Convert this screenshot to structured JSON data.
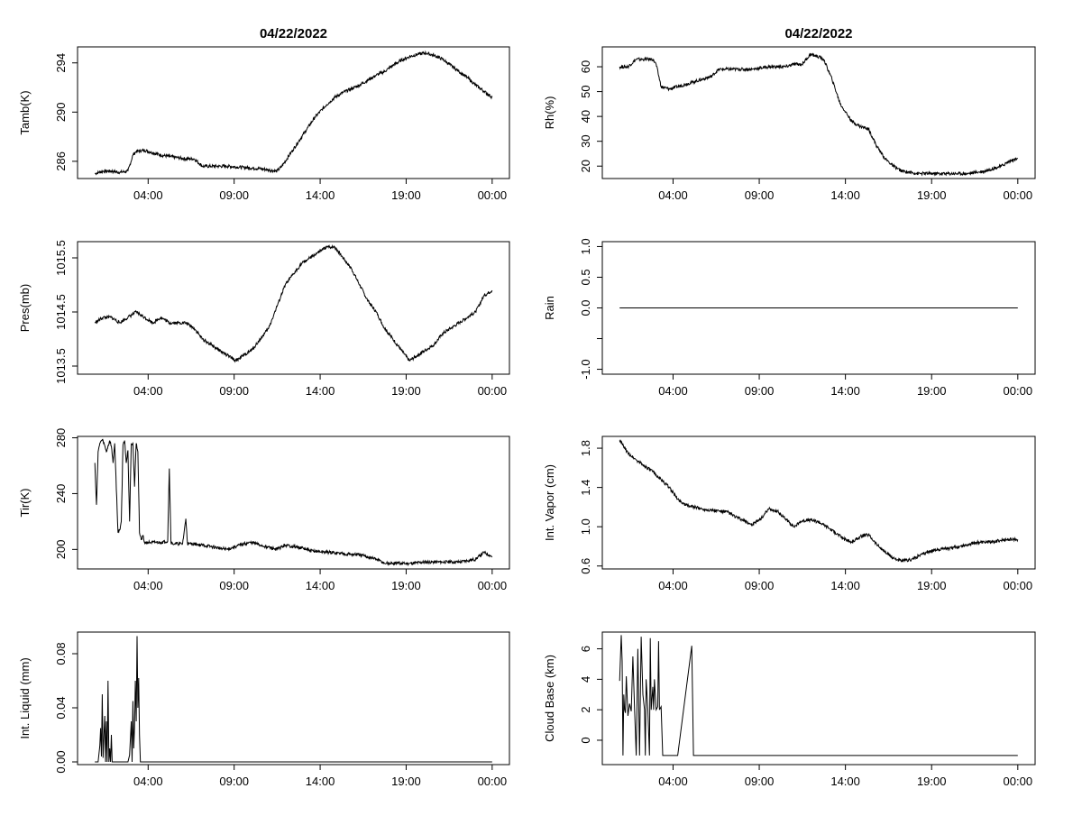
{
  "chart_data": [
    {
      "type": "line",
      "title": "04/22/2022",
      "ylabel": "Tamb(K)",
      "xlim": [
        0,
        24
      ],
      "ylim": [
        284.6,
        295.3
      ],
      "xticks": [
        "04:00",
        "09:00",
        "14:00",
        "19:00",
        "00:00"
      ],
      "yticks": [
        286,
        290,
        294
      ],
      "x": [
        0,
        0.5,
        1,
        1.5,
        2,
        2.3,
        2.5,
        3,
        3.5,
        4,
        4.5,
        5,
        5.5,
        6,
        6.5,
        7,
        8,
        9,
        10,
        10.5,
        11,
        11.3,
        11.8,
        12.3,
        12.8,
        13.3,
        14,
        14.5,
        15,
        16,
        17,
        17.5,
        18,
        18.5,
        19,
        19.5,
        20,
        20.5,
        21,
        21.5,
        22,
        22.5,
        23,
        23.5,
        24
      ],
      "y": [
        285,
        285.2,
        285.2,
        285.1,
        285.2,
        286.5,
        286.8,
        286.9,
        286.7,
        286.5,
        286.4,
        286.3,
        286.2,
        286.2,
        285.6,
        285.6,
        285.6,
        285.5,
        285.4,
        285.3,
        285.2,
        285.6,
        286.6,
        287.6,
        288.6,
        289.6,
        290.6,
        291.2,
        291.6,
        292.2,
        293,
        293.3,
        293.8,
        294.2,
        294.5,
        294.7,
        294.8,
        294.6,
        294.3,
        293.8,
        293.3,
        292.8,
        292.2,
        291.7,
        291.2
      ]
    },
    {
      "type": "line",
      "title": "04/22/2022",
      "ylabel": "Rh(%)",
      "xlim": [
        0,
        24
      ],
      "ylim": [
        15,
        68
      ],
      "xticks": [
        "04:00",
        "09:00",
        "14:00",
        "19:00",
        "00:00"
      ],
      "yticks": [
        20,
        30,
        40,
        50,
        60
      ],
      "x": [
        0,
        0.5,
        1,
        1.5,
        2,
        2.2,
        2.5,
        3,
        3.5,
        4,
        4.5,
        5,
        5.5,
        6,
        7,
        8,
        9,
        10,
        10.5,
        11,
        11.5,
        12,
        12.3,
        12.8,
        13.3,
        14,
        14.5,
        15,
        15.5,
        16,
        16.5,
        17,
        18,
        19,
        20,
        21,
        22,
        23,
        23.5,
        24
      ],
      "y": [
        60,
        60,
        63,
        63,
        63,
        61,
        52,
        51,
        52,
        53,
        54,
        55,
        56,
        59,
        59,
        59,
        60,
        60,
        61,
        61,
        65,
        64,
        63,
        55,
        45,
        38,
        36,
        35,
        28,
        23,
        20,
        18,
        17,
        17,
        17,
        17,
        18,
        20,
        22,
        23
      ]
    },
    {
      "type": "line",
      "ylabel": "Pres(mb)",
      "xlim": [
        0,
        24
      ],
      "ylim": [
        1013.35,
        1015.8
      ],
      "xticks": [
        "04:00",
        "09:00",
        "14:00",
        "19:00",
        "00:00"
      ],
      "yticks": [
        1013.5,
        1014.5,
        1015.5
      ],
      "ytick_labels": [
        "1013.5",
        "1014.5",
        "1015.5"
      ],
      "x": [
        0,
        0.5,
        1,
        1.5,
        2,
        2.5,
        3,
        3.5,
        4,
        4.5,
        5,
        5.5,
        6,
        6.5,
        7,
        7.5,
        8,
        8.5,
        9,
        9.5,
        10,
        10.5,
        11,
        11.5,
        12,
        12.5,
        13,
        13.5,
        14,
        14.5,
        15,
        15.5,
        16,
        16.5,
        17,
        17.5,
        18,
        18.5,
        19,
        19.5,
        20,
        20.5,
        21,
        21.5,
        22,
        22.5,
        23,
        23.5,
        24
      ],
      "y": [
        1014.3,
        1014.4,
        1014.4,
        1014.3,
        1014.4,
        1014.5,
        1014.4,
        1014.3,
        1014.4,
        1014.3,
        1014.3,
        1014.3,
        1014.2,
        1014.0,
        1013.9,
        1013.8,
        1013.7,
        1013.6,
        1013.7,
        1013.8,
        1014.0,
        1014.2,
        1014.6,
        1015.0,
        1015.2,
        1015.4,
        1015.5,
        1015.6,
        1015.7,
        1015.7,
        1015.5,
        1015.3,
        1015.0,
        1014.7,
        1014.5,
        1014.2,
        1014.0,
        1013.8,
        1013.6,
        1013.7,
        1013.8,
        1013.9,
        1014.1,
        1014.2,
        1014.3,
        1014.4,
        1014.5,
        1014.8,
        1014.9
      ]
    },
    {
      "type": "line",
      "ylabel": "Rain",
      "xlim": [
        0,
        24
      ],
      "ylim": [
        -1.08,
        1.08
      ],
      "xticks": [
        "04:00",
        "09:00",
        "14:00",
        "19:00",
        "00:00"
      ],
      "yticks": [
        -1.0,
        -0.5,
        0.0,
        0.5,
        1.0
      ],
      "ytick_labels": [
        "-1.0",
        "",
        "0.0",
        "0.5",
        "1.0"
      ],
      "x": [
        0,
        24
      ],
      "y": [
        0,
        0
      ]
    },
    {
      "type": "line",
      "ylabel": "Tir(K)",
      "xlim": [
        0,
        24
      ],
      "ylim": [
        186,
        281
      ],
      "xticks": [
        "04:00",
        "09:00",
        "14:00",
        "19:00",
        "00:00"
      ],
      "yticks": [
        200,
        240,
        280
      ],
      "x": [
        0,
        0.1,
        0.2,
        0.3,
        0.4,
        0.5,
        0.7,
        0.9,
        1.0,
        1.1,
        1.2,
        1.4,
        1.5,
        1.6,
        1.7,
        1.8,
        1.9,
        2.0,
        2.1,
        2.2,
        2.3,
        2.4,
        2.5,
        2.6,
        2.7,
        2.8,
        2.9,
        3.0,
        3.1,
        3.2,
        3.3,
        3.4,
        3.6,
        4.0,
        4.4,
        4.5,
        4.6,
        4.7,
        4.8,
        5.0,
        5.3,
        5.5,
        5.6,
        5.7,
        5.8,
        6.0,
        6.5,
        7,
        8,
        9,
        9.5,
        10,
        11,
        11.5,
        12,
        12.5,
        13,
        14,
        15,
        16,
        17,
        17.5,
        18,
        19,
        20,
        21,
        22,
        22.5,
        23,
        23.5,
        24
      ],
      "y": [
        262,
        232,
        270,
        276,
        278,
        278,
        270,
        278,
        274,
        262,
        276,
        212,
        214,
        220,
        275,
        278,
        262,
        271,
        220,
        276,
        276,
        245,
        276,
        270,
        212,
        207,
        210,
        205,
        205,
        205,
        205,
        205,
        205,
        205,
        206,
        258,
        205,
        204,
        204,
        204,
        204,
        222,
        204,
        204,
        204,
        204,
        203,
        202,
        200,
        204,
        205,
        203,
        200,
        203,
        202,
        201,
        199,
        198,
        197,
        196,
        193,
        190,
        190,
        190,
        191,
        191,
        191,
        192,
        193,
        198,
        195
      ]
    },
    {
      "type": "line",
      "ylabel": "Int. Vapor (cm)",
      "xlim": [
        0,
        24
      ],
      "ylim": [
        0.57,
        1.92
      ],
      "xticks": [
        "04:00",
        "09:00",
        "14:00",
        "19:00",
        "00:00"
      ],
      "yticks": [
        0.6,
        1.0,
        1.4,
        1.8
      ],
      "ytick_labels": [
        "0.6",
        "1.0",
        "1.4",
        "1.8"
      ],
      "x": [
        0,
        0.5,
        1,
        1.5,
        2,
        2.5,
        3,
        3.5,
        4,
        4.5,
        5,
        5.5,
        6,
        6.5,
        7,
        7.5,
        8,
        8.5,
        9,
        9.5,
        10,
        10.5,
        11,
        11.5,
        12,
        12.5,
        13,
        13.5,
        14,
        14.5,
        15,
        15.5,
        16,
        16.5,
        17,
        17.5,
        18,
        18.5,
        19,
        19.5,
        20,
        20.5,
        21,
        21.5,
        22,
        22.5,
        23,
        23.5,
        24
      ],
      "y": [
        1.88,
        1.75,
        1.68,
        1.62,
        1.56,
        1.48,
        1.4,
        1.28,
        1.22,
        1.2,
        1.18,
        1.17,
        1.16,
        1.15,
        1.1,
        1.06,
        1.02,
        1.08,
        1.18,
        1.16,
        1.08,
        1.0,
        1.06,
        1.07,
        1.05,
        1.0,
        0.94,
        0.88,
        0.84,
        0.9,
        0.92,
        0.82,
        0.74,
        0.68,
        0.65,
        0.66,
        0.7,
        0.74,
        0.76,
        0.78,
        0.78,
        0.8,
        0.82,
        0.84,
        0.84,
        0.85,
        0.86,
        0.87,
        0.87
      ]
    },
    {
      "type": "line",
      "ylabel": "Int. Liquid (mm)",
      "xlim": [
        0,
        24
      ],
      "ylim": [
        -0.002,
        0.096
      ],
      "xticks": [
        "04:00",
        "09:00",
        "14:00",
        "19:00",
        "00:00"
      ],
      "yticks": [
        0.0,
        0.04,
        0.08
      ],
      "ytick_labels": [
        "0.00",
        "0.04",
        "0.08"
      ],
      "x": [
        0,
        0.2,
        0.3,
        0.35,
        0.4,
        0.45,
        0.5,
        0.55,
        0.6,
        0.65,
        0.7,
        0.75,
        0.8,
        0.85,
        0.9,
        0.95,
        1.0,
        1.05,
        1.1,
        1.15,
        1.2,
        1.25,
        1.4,
        1.6,
        1.8,
        2.0,
        2.1,
        2.2,
        2.25,
        2.3,
        2.35,
        2.4,
        2.45,
        2.5,
        2.55,
        2.6,
        2.65,
        2.7,
        2.75,
        2.8,
        2.9,
        3.0,
        3.5,
        24
      ],
      "y": [
        0,
        0,
        0.012,
        0.025,
        0.004,
        0.05,
        0.003,
        0.02,
        0.034,
        0.0,
        0.03,
        0.0,
        0.06,
        0.0,
        0.01,
        0.0,
        0.02,
        0.0,
        0.0,
        0.0,
        0.0,
        0.0,
        0.0,
        0.0,
        0.0,
        0.0,
        0.005,
        0.03,
        0.0,
        0.045,
        0.01,
        0.025,
        0.06,
        0.03,
        0.093,
        0.04,
        0.062,
        0.02,
        0.0,
        0.0,
        0.0,
        0.0,
        0.0,
        0.0
      ]
    },
    {
      "type": "line",
      "ylabel": "Cloud Base (km)",
      "xlim": [
        0,
        24
      ],
      "ylim": [
        -1.6,
        7.1
      ],
      "xticks": [
        "04:00",
        "09:00",
        "14:00",
        "19:00",
        "00:00"
      ],
      "yticks": [
        0,
        2,
        4,
        6
      ],
      "x": [
        0,
        0.1,
        0.15,
        0.2,
        0.25,
        0.3,
        0.35,
        0.4,
        0.5,
        0.6,
        0.7,
        0.8,
        0.9,
        1.0,
        1.1,
        1.2,
        1.3,
        1.4,
        1.5,
        1.55,
        1.6,
        1.7,
        1.8,
        1.85,
        1.9,
        2.0,
        2.05,
        2.1,
        2.2,
        2.3,
        2.35,
        2.4,
        2.5,
        2.6,
        2.65,
        2.7,
        2.8,
        2.85,
        3.0,
        3.5,
        4.35,
        4.4,
        4.45,
        4.5,
        24
      ],
      "y": [
        3.9,
        6.9,
        5.2,
        -1.0,
        3.0,
        2.0,
        1.8,
        4.2,
        1.6,
        2.4,
        1.9,
        5.5,
        2.0,
        -1.0,
        6.0,
        -1.0,
        6.8,
        3.0,
        2.0,
        -1.0,
        4.0,
        2.0,
        -1.0,
        6.7,
        2.0,
        3.5,
        2.0,
        4.0,
        2.0,
        2.2,
        6.5,
        2.0,
        2.2,
        -1.0,
        -1.0,
        -1.0,
        -1.0,
        -1.0,
        -1.0,
        -1.0,
        6.2,
        2.5,
        -1.0,
        -1.0,
        -1.0
      ]
    }
  ]
}
